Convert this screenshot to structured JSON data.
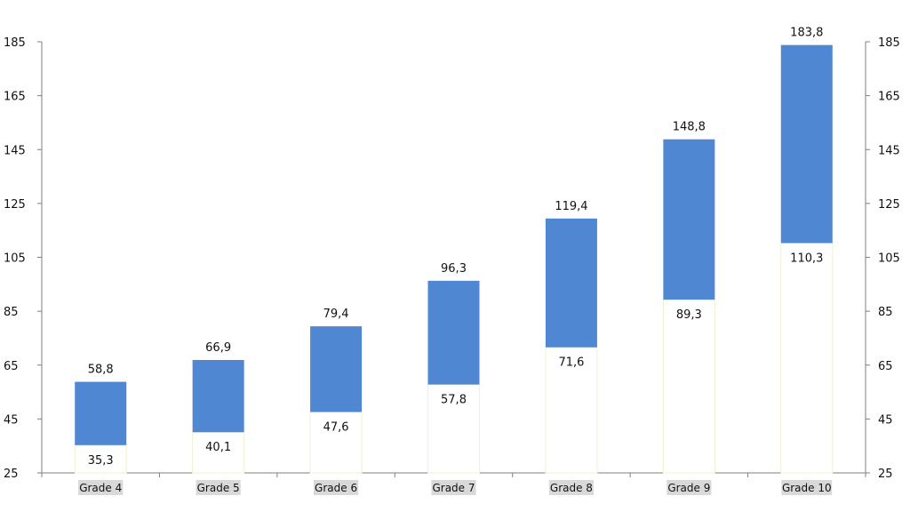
{
  "chart_data": {
    "type": "bar",
    "subtype": "floating-range",
    "categories": [
      "Grade 4",
      "Grade 5",
      "Grade 6",
      "Grade 7",
      "Grade 8",
      "Grade 9",
      "Grade 10"
    ],
    "series": [
      {
        "values_low": [
          35.3,
          40.1,
          47.6,
          57.8,
          71.6,
          89.3,
          110.3
        ]
      },
      {
        "values_high": [
          58.8,
          66.9,
          79.4,
          96.3,
          119.4,
          148.8,
          183.8
        ]
      }
    ],
    "low_labels": [
      "35,3",
      "40,1",
      "47,6",
      "57,8",
      "71,6",
      "89,3",
      "110,3"
    ],
    "high_labels": [
      "58,8",
      "66,9",
      "79,4",
      "96,3",
      "119,4",
      "148,8",
      "183,8"
    ],
    "title": "",
    "xlabel": "",
    "ylabel": "",
    "ylim": [
      25,
      185
    ],
    "yticks": [
      25,
      45,
      65,
      85,
      105,
      125,
      145,
      165,
      185
    ],
    "secondary_y_axis": true,
    "grid": false,
    "legend": "none",
    "colors": {
      "bar": "#4f87d2",
      "base_outline": "#f3f0d0"
    }
  }
}
